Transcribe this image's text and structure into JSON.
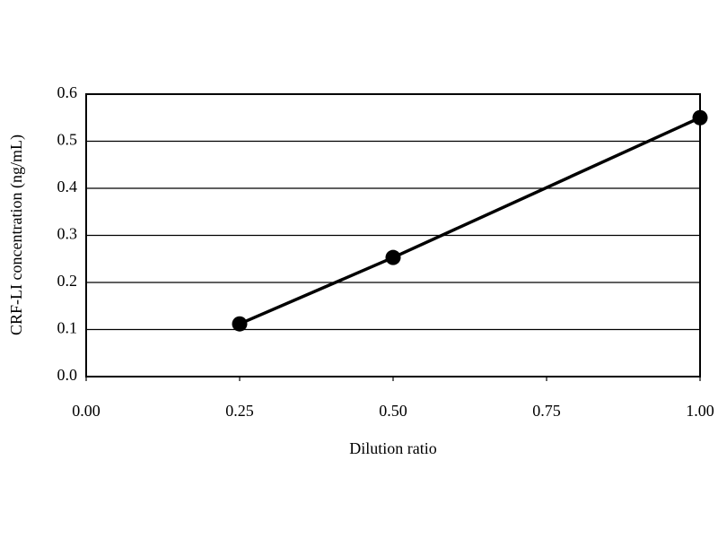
{
  "chart_data": {
    "type": "line",
    "x_label": "Dilution ratio",
    "y_label": "CRF-LI concentration (ng/mL)",
    "x": [
      0.25,
      0.5,
      1.0
    ],
    "series": [
      {
        "color": "#000000",
        "values": [
          0.112,
          0.253,
          0.55
        ]
      }
    ],
    "xlim": [
      0,
      1
    ],
    "xticks": [
      {
        "value": 0,
        "label": "0.00"
      },
      0.25,
      {
        "value": 0.5,
        "label": "0.50"
      },
      0.75,
      {
        "value": 1,
        "label": "1.00"
      }
    ],
    "ylim": [
      0,
      0.6
    ],
    "yticks": [
      {
        "value": 0,
        "label": "0.0"
      },
      0.1,
      0.2,
      0.3,
      0.4,
      0.5,
      0.6
    ],
    "grid": true
  }
}
